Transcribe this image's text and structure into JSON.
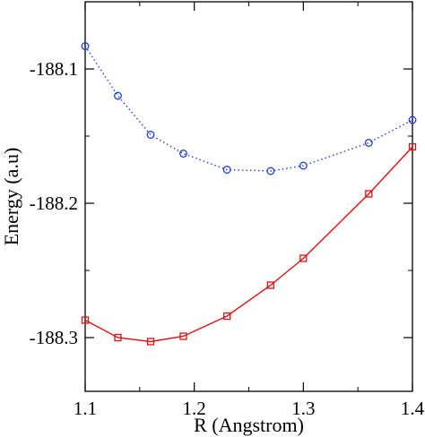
{
  "chart_data": {
    "type": "line",
    "xlabel": "R (Angstrom)",
    "ylabel": "Energy (a.u)",
    "xlim": [
      1.1,
      1.4
    ],
    "ylim": [
      -188.34,
      -188.05
    ],
    "xticks": [
      1.1,
      1.2,
      1.3,
      1.4
    ],
    "xtick_labels": [
      "1.1",
      "1.2",
      "1.3",
      "1.4"
    ],
    "yticks": [
      -188.1,
      -188.2,
      -188.3
    ],
    "ytick_labels": [
      "-188.1",
      "-188.2",
      "-188.3"
    ],
    "grid": false,
    "legend": "none",
    "series": [
      {
        "color": "#1f3fdc",
        "line_style": "dotted",
        "marker": "circle",
        "x": [
          1.1,
          1.13,
          1.16,
          1.19,
          1.23,
          1.27,
          1.3,
          1.36,
          1.4
        ],
        "y": [
          -188.083,
          -188.12,
          -188.149,
          -188.163,
          -188.175,
          -188.176,
          -188.172,
          -188.155,
          -188.138
        ]
      },
      {
        "color": "#e01010",
        "line_style": "solid",
        "marker": "square",
        "x": [
          1.1,
          1.13,
          1.16,
          1.19,
          1.23,
          1.27,
          1.3,
          1.36,
          1.4
        ],
        "y": [
          -188.287,
          -188.3,
          -188.303,
          -188.299,
          -188.284,
          -188.261,
          -188.241,
          -188.193,
          -188.158
        ]
      }
    ]
  }
}
